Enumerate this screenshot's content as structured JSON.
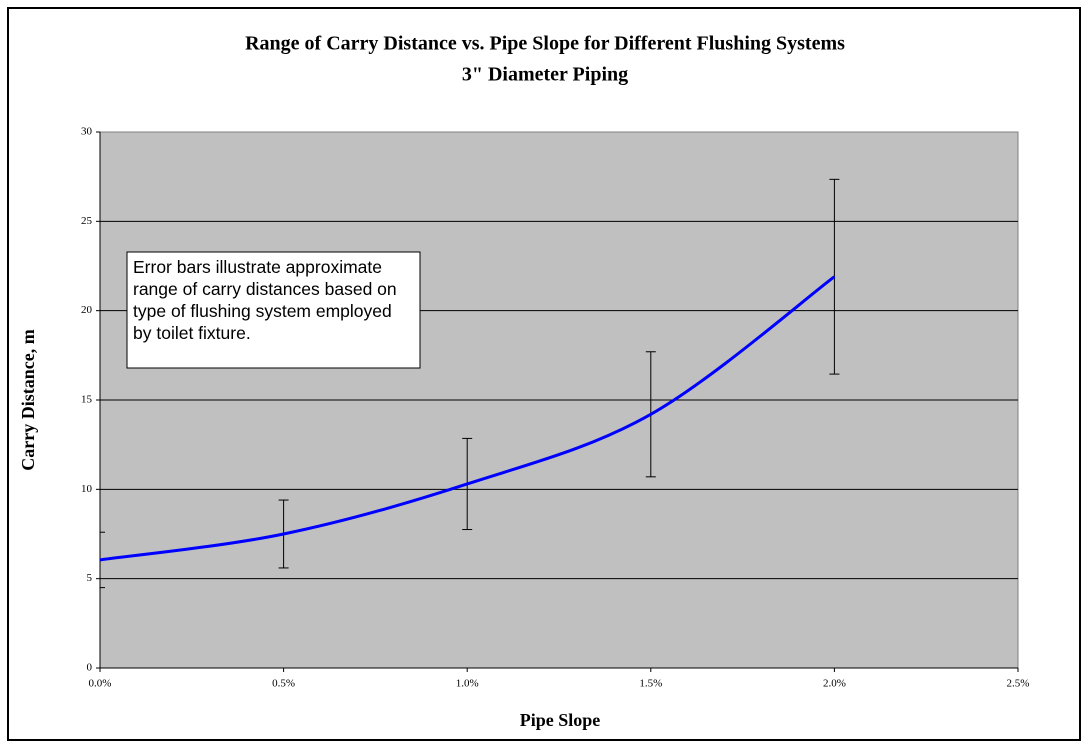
{
  "chart_data": {
    "type": "line",
    "title": "Range of Carry Distance vs. Pipe Slope for Different Flushing Systems",
    "subtitle": "3\" Diameter Piping",
    "x_label": "Pipe Slope",
    "y_label": "Carry Distance, m",
    "annotation": "Error bars illustrate approximate range of carry distances based on type of flushing system employed by toilet fixture.",
    "x": [
      0,
      0.5,
      1.0,
      1.5,
      2.0
    ],
    "series": [
      {
        "name": "Carry Distance",
        "color": "#0000ff",
        "values": [
          6.05,
          7.5,
          10.3,
          14.2,
          21.9
        ],
        "errors": [
          1.55,
          1.9,
          2.55,
          3.5,
          5.45
        ]
      }
    ],
    "xlim": [
      0,
      2.5
    ],
    "xticks": [
      {
        "value": 0,
        "label": "0.0%"
      },
      {
        "value": 0.5,
        "label": "0.5%"
      },
      {
        "value": 1.0,
        "label": "1.0%"
      },
      {
        "value": 1.5,
        "label": "1.5%"
      },
      {
        "value": 2.0,
        "label": "2.0%"
      },
      {
        "value": 2.5,
        "label": "2.5%"
      }
    ],
    "ylim": [
      0,
      30
    ],
    "yticks": [
      0,
      5,
      10,
      15,
      20,
      25,
      30
    ],
    "grid": true,
    "smooth": true
  }
}
